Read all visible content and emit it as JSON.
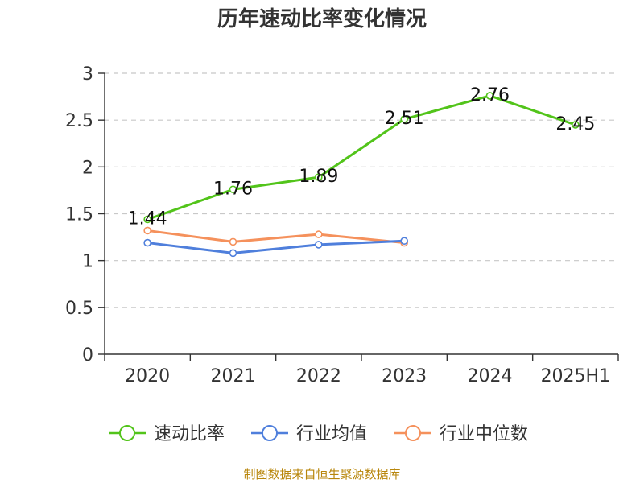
{
  "chart_data": {
    "type": "line",
    "title": "历年速动比率变化情况",
    "categories": [
      "2020",
      "2021",
      "2022",
      "2023",
      "2024",
      "2025H1"
    ],
    "ylim": [
      0,
      3
    ],
    "yticks": [
      "0",
      "0.5",
      "1",
      "1.5",
      "2",
      "2.5",
      "3"
    ],
    "grid": true,
    "legend_position": "bottom",
    "series": [
      {
        "name": "速动比率",
        "color": "#52c41a",
        "values": [
          1.44,
          1.76,
          1.89,
          2.51,
          2.76,
          2.45
        ],
        "labels": [
          "1.44",
          "1.76",
          "1.89",
          "2.51",
          "2.76",
          "2.45"
        ]
      },
      {
        "name": "行业均值",
        "color": "#4f7fdc",
        "values": [
          1.19,
          1.08,
          1.17,
          1.21,
          null,
          null
        ]
      },
      {
        "name": "行业中位数",
        "color": "#f5915c",
        "values": [
          1.32,
          1.2,
          1.28,
          1.19,
          null,
          null
        ]
      }
    ]
  },
  "source": "制图数据来自恒生聚源数据库"
}
